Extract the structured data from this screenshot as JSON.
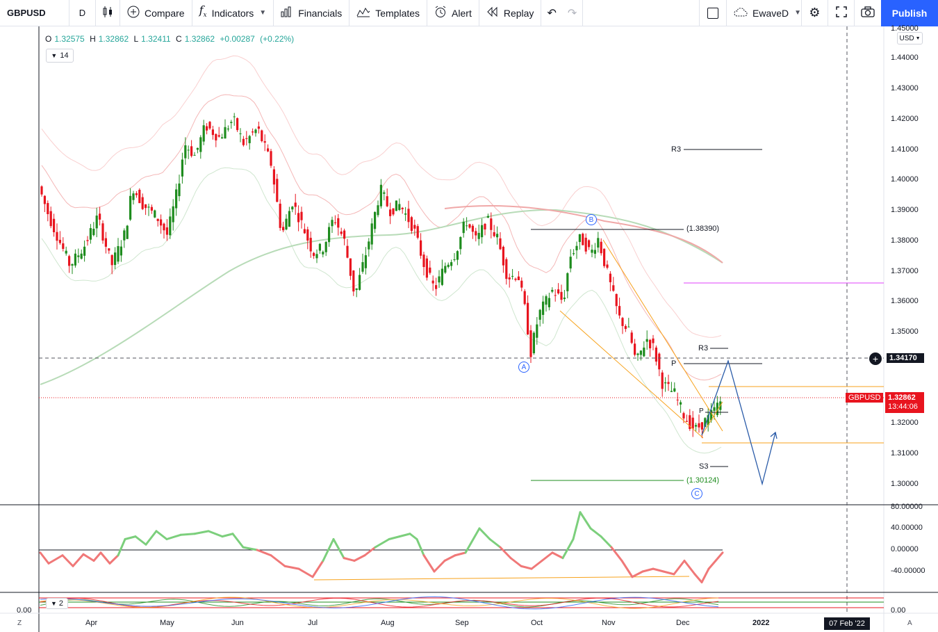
{
  "toolbar": {
    "symbol": "GBPUSD",
    "interval": "D",
    "compare": "Compare",
    "indicators": "Indicators",
    "financials": "Financials",
    "templates": "Templates",
    "alert": "Alert",
    "replay": "Replay",
    "layout_name": "EwaveD",
    "publish": "Publish",
    "icons": [
      "candles-icon",
      "plus-circle-icon",
      "fx-icon",
      "bars-icon",
      "templates-icon",
      "alarm-clock-icon",
      "replay-icon",
      "undo-icon",
      "redo-icon",
      "square-icon",
      "cloud-icon",
      "gear-icon",
      "fullscreen-icon",
      "camera-icon"
    ]
  },
  "legend": {
    "open_label": "O",
    "open": "1.32575",
    "high_label": "H",
    "high": "1.32862",
    "low_label": "L",
    "low": "1.32411",
    "close_label": "C",
    "close": "1.32862",
    "change": "+0.00287",
    "change_pct": "(+0.22%)",
    "indicator_badge": "14",
    "indicator_badge_2": "2",
    "currency": "USD"
  },
  "price_axis": {
    "labels": [
      "1.45000",
      "1.44000",
      "1.43000",
      "1.42000",
      "1.41000",
      "1.40000",
      "1.39000",
      "1.38000",
      "1.37000",
      "1.36000",
      "1.35000",
      "1.32000",
      "1.31000",
      "1.30000"
    ],
    "crosshair_price": "1.34170",
    "last_symbol": "GBPUSD",
    "last_price": "1.32862",
    "countdown": "13:44:06"
  },
  "osc_axis": {
    "labels": [
      "80.00000",
      "40.00000",
      "0.00000",
      "-40.00000"
    ],
    "bottom_label_left": "0.00",
    "bottom_label_right": "0.00"
  },
  "time_axis": {
    "labels": [
      "Apr",
      "May",
      "Jun",
      "Jul",
      "Aug",
      "Sep",
      "Oct",
      "Nov",
      "Dec",
      "2022"
    ],
    "crosshair_date": "07 Feb '22",
    "corner_left": "Z",
    "corner_right": "A"
  },
  "annotations": {
    "wave_a": "A",
    "wave_b": "B",
    "wave_c": "C",
    "level_high": "(1.38390)",
    "level_low": "(1.30124)",
    "r3_top": "R3",
    "r3_mid": "R3",
    "pivot": "P",
    "pivot_small": "P",
    "s3": "S3"
  },
  "colors": {
    "up": "#26a69a",
    "up_candle": "#1e8c1e",
    "down_candle": "#e8141e",
    "accent": "#2962ff",
    "fib_orange": "#f7a21b",
    "magenta": "#e040fb"
  }
}
